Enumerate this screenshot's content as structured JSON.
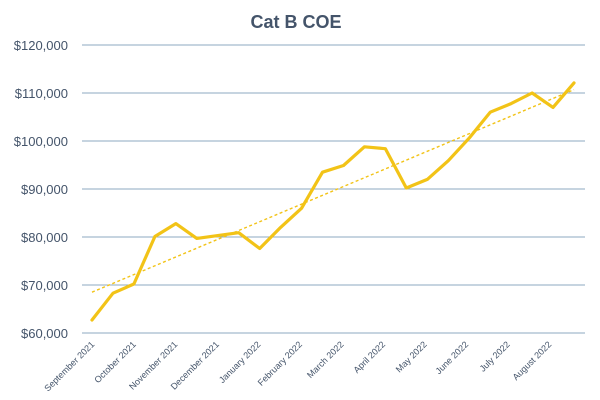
{
  "chart_data": {
    "type": "line",
    "title": "Cat B COE",
    "xlabel": "",
    "ylabel": "",
    "ylim": [
      60000,
      120000
    ],
    "y_ticks": [
      60000,
      70000,
      80000,
      90000,
      100000,
      110000,
      120000
    ],
    "y_tick_labels": [
      "$60,000",
      "$70,000",
      "$80,000",
      "$90,000",
      "$100,000",
      "$110,000",
      "$120,000"
    ],
    "grid": true,
    "legend": "none",
    "x_labels": [
      "September 2021",
      "October 2021",
      "November 2021",
      "December 2021",
      "January 2022",
      "February 2022",
      "March 2022",
      "April 2022",
      "May 2022",
      "June 2022",
      "July 2022",
      "August 2022"
    ],
    "series": [
      {
        "values": [
          62700,
          68300,
          70200,
          80100,
          82800,
          79700,
          80300,
          80900,
          77600,
          82000,
          86000,
          93500,
          94900,
          98800,
          98400,
          90200,
          92000,
          95900,
          100600,
          106000,
          107800,
          110000,
          107000,
          112100
        ],
        "color": "#f2c317",
        "style": "solid"
      },
      {
        "type": "trendline",
        "values": [
          68500,
          110700
        ],
        "color": "#f2c317",
        "style": "dashed"
      }
    ]
  }
}
